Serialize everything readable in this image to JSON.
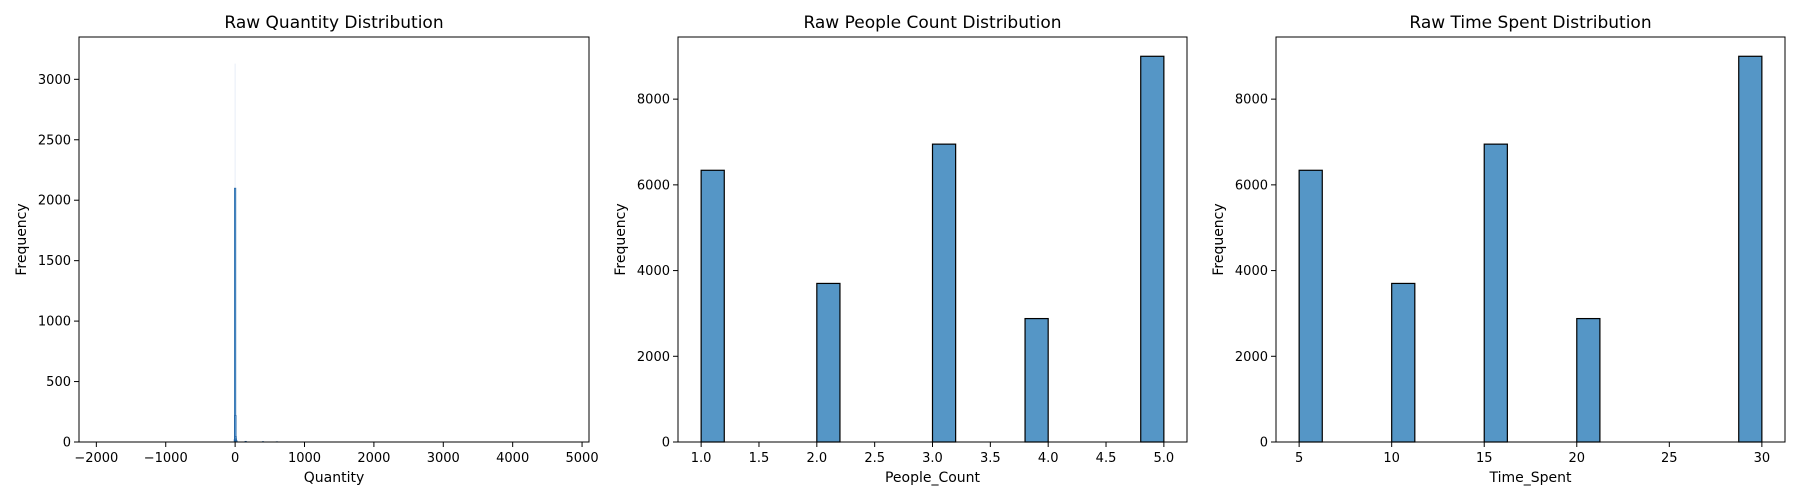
{
  "chart_data": [
    {
      "type": "bar",
      "title": "Raw Quantity Distribution",
      "xlabel": "Quantity",
      "ylabel": "Frequency",
      "xlim": [
        -2250,
        5100
      ],
      "ylim": [
        0,
        3350
      ],
      "xticks": [
        -2000,
        -1000,
        0,
        1000,
        2000,
        3000,
        4000,
        5000
      ],
      "xtick_labels": [
        "−2000",
        "−1000",
        "0",
        "1000",
        "2000",
        "3000",
        "4000",
        "5000"
      ],
      "yticks": [
        0,
        500,
        1000,
        1500,
        2000,
        2500,
        3000
      ],
      "ytick_labels": [
        "0",
        "500",
        "1000",
        "1500",
        "2000",
        "2500",
        "3000"
      ],
      "bar_color": "#5b9bd5",
      "bar_edge": "#1f5f9f",
      "bins": [
        {
          "x0": -6,
          "x1": -2,
          "y": 20
        },
        {
          "x0": -2,
          "x1": 2,
          "y": 2100
        },
        {
          "x0": 2,
          "x1": 6,
          "y": 220
        },
        {
          "x0": 6,
          "x1": 10,
          "y": 45
        },
        {
          "x0": 10,
          "x1": 14,
          "y": 25
        },
        {
          "x0": 14,
          "x1": 18,
          "y": 12
        },
        {
          "x0": 18,
          "x1": 22,
          "y": 8
        },
        {
          "x0": 150,
          "x1": 154,
          "y": 6
        },
        {
          "x0": 400,
          "x1": 404,
          "y": 4
        },
        {
          "x0": 600,
          "x1": 604,
          "y": 3
        }
      ],
      "faint_peak": {
        "x": 0,
        "y": 3130
      }
    },
    {
      "type": "bar",
      "title": "Raw People Count Distribution",
      "xlabel": "People_Count",
      "ylabel": "Frequency",
      "xlim": [
        0.8,
        5.2
      ],
      "ylim": [
        0,
        9450
      ],
      "xticks": [
        1.0,
        1.5,
        2.0,
        2.5,
        3.0,
        3.5,
        4.0,
        4.5,
        5.0
      ],
      "xtick_labels": [
        "1.0",
        "1.5",
        "2.0",
        "2.5",
        "3.0",
        "3.5",
        "4.0",
        "4.5",
        "5.0"
      ],
      "yticks": [
        0,
        2000,
        4000,
        6000,
        8000
      ],
      "ytick_labels": [
        "0",
        "2000",
        "4000",
        "6000",
        "8000"
      ],
      "bar_color": "#5596c6",
      "bar_edge": "#000000",
      "bins": [
        {
          "x0": 1.0,
          "x1": 1.2,
          "y": 6340
        },
        {
          "x0": 2.0,
          "x1": 2.2,
          "y": 3700
        },
        {
          "x0": 3.0,
          "x1": 3.2,
          "y": 6950
        },
        {
          "x0": 3.8,
          "x1": 4.0,
          "y": 2880
        },
        {
          "x0": 4.8,
          "x1": 5.0,
          "y": 9000
        }
      ]
    },
    {
      "type": "bar",
      "title": "Raw Time Spent Distribution",
      "xlabel": "Time_Spent",
      "ylabel": "Frequency",
      "xlim": [
        3.75,
        31.25
      ],
      "ylim": [
        0,
        9450
      ],
      "xticks": [
        5,
        10,
        15,
        20,
        25,
        30
      ],
      "xtick_labels": [
        "5",
        "10",
        "15",
        "20",
        "25",
        "30"
      ],
      "yticks": [
        0,
        2000,
        4000,
        6000,
        8000
      ],
      "ytick_labels": [
        "0",
        "2000",
        "4000",
        "6000",
        "8000"
      ],
      "bar_color": "#5596c6",
      "bar_edge": "#000000",
      "bins": [
        {
          "x0": 5.0,
          "x1": 6.25,
          "y": 6340
        },
        {
          "x0": 10.0,
          "x1": 11.25,
          "y": 3700
        },
        {
          "x0": 15.0,
          "x1": 16.25,
          "y": 6950
        },
        {
          "x0": 20.0,
          "x1": 21.25,
          "y": 2880
        },
        {
          "x0": 28.75,
          "x1": 30.0,
          "y": 9000
        }
      ]
    }
  ]
}
